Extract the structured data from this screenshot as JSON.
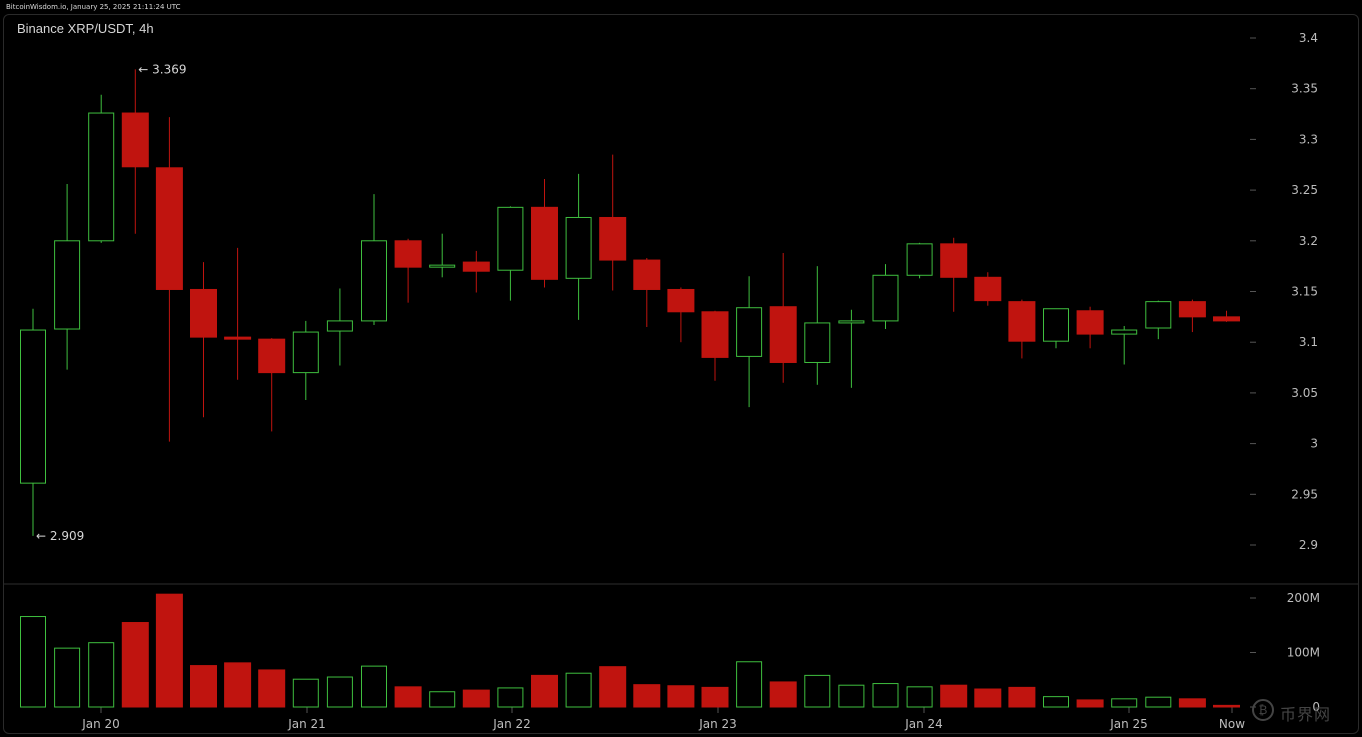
{
  "header": {
    "source_line": "BitcoinWisdom.io, January 25, 2025 21:11:24 UTC"
  },
  "chart_data": {
    "type": "candlestick",
    "title": "Binance XRP/USDT, 4h",
    "interval": "4h",
    "price_axis": {
      "ticks": [
        "3.4",
        "3.35",
        "3.3",
        "3.25",
        "3.2",
        "3.15",
        "3.1",
        "3.05",
        "3",
        "2.95",
        "2.9"
      ],
      "range": [
        2.87,
        3.42
      ]
    },
    "volume_axis": {
      "ticks": [
        "200M",
        "100M",
        "0"
      ],
      "range": [
        0,
        215
      ]
    },
    "x_ticks": [
      "Jan 20",
      "Jan 21",
      "Jan 22",
      "Jan 23",
      "Jan 24",
      "Jan 25",
      "Now"
    ],
    "annotations": {
      "high": "← 3.369",
      "low": "← 2.909"
    },
    "colors": {
      "up": "#3fbf3f",
      "down": "#c0140f",
      "grid": "#2b2b2b"
    },
    "candles": [
      {
        "o": 2.961,
        "h": 3.133,
        "l": 2.909,
        "c": 3.112,
        "v": 166
      },
      {
        "o": 3.113,
        "h": 3.256,
        "l": 3.073,
        "c": 3.2,
        "v": 108
      },
      {
        "o": 3.2,
        "h": 3.344,
        "l": 3.198,
        "c": 3.326,
        "v": 118
      },
      {
        "o": 3.326,
        "h": 3.369,
        "l": 3.207,
        "c": 3.273,
        "v": 155
      },
      {
        "o": 3.272,
        "h": 3.322,
        "l": 3.002,
        "c": 3.152,
        "v": 207
      },
      {
        "o": 3.152,
        "h": 3.179,
        "l": 3.026,
        "c": 3.105,
        "v": 76
      },
      {
        "o": 3.105,
        "h": 3.193,
        "l": 3.063,
        "c": 3.103,
        "v": 81
      },
      {
        "o": 3.103,
        "h": 3.104,
        "l": 3.012,
        "c": 3.07,
        "v": 68
      },
      {
        "o": 3.07,
        "h": 3.121,
        "l": 3.043,
        "c": 3.11,
        "v": 51
      },
      {
        "o": 3.111,
        "h": 3.153,
        "l": 3.077,
        "c": 3.121,
        "v": 55
      },
      {
        "o": 3.121,
        "h": 3.246,
        "l": 3.117,
        "c": 3.2,
        "v": 75
      },
      {
        "o": 3.2,
        "h": 3.202,
        "l": 3.139,
        "c": 3.174,
        "v": 37
      },
      {
        "o": 3.174,
        "h": 3.207,
        "l": 3.164,
        "c": 3.176,
        "v": 28
      },
      {
        "o": 3.179,
        "h": 3.19,
        "l": 3.149,
        "c": 3.17,
        "v": 31
      },
      {
        "o": 3.171,
        "h": 3.234,
        "l": 3.141,
        "c": 3.233,
        "v": 35
      },
      {
        "o": 3.233,
        "h": 3.261,
        "l": 3.154,
        "c": 3.162,
        "v": 58
      },
      {
        "o": 3.163,
        "h": 3.266,
        "l": 3.122,
        "c": 3.223,
        "v": 62
      },
      {
        "o": 3.223,
        "h": 3.285,
        "l": 3.151,
        "c": 3.181,
        "v": 74
      },
      {
        "o": 3.181,
        "h": 3.183,
        "l": 3.115,
        "c": 3.152,
        "v": 41
      },
      {
        "o": 3.152,
        "h": 3.154,
        "l": 3.1,
        "c": 3.13,
        "v": 39
      },
      {
        "o": 3.13,
        "h": 3.131,
        "l": 3.062,
        "c": 3.085,
        "v": 36
      },
      {
        "o": 3.086,
        "h": 3.165,
        "l": 3.036,
        "c": 3.134,
        "v": 83
      },
      {
        "o": 3.135,
        "h": 3.188,
        "l": 3.06,
        "c": 3.08,
        "v": 46
      },
      {
        "o": 3.08,
        "h": 3.175,
        "l": 3.058,
        "c": 3.119,
        "v": 58
      },
      {
        "o": 3.119,
        "h": 3.132,
        "l": 3.055,
        "c": 3.121,
        "v": 40
      },
      {
        "o": 3.121,
        "h": 3.177,
        "l": 3.113,
        "c": 3.166,
        "v": 43
      },
      {
        "o": 3.166,
        "h": 3.198,
        "l": 3.163,
        "c": 3.197,
        "v": 37
      },
      {
        "o": 3.197,
        "h": 3.203,
        "l": 3.13,
        "c": 3.164,
        "v": 40
      },
      {
        "o": 3.164,
        "h": 3.169,
        "l": 3.136,
        "c": 3.141,
        "v": 33
      },
      {
        "o": 3.14,
        "h": 3.142,
        "l": 3.084,
        "c": 3.101,
        "v": 36
      },
      {
        "o": 3.101,
        "h": 3.133,
        "l": 3.094,
        "c": 3.133,
        "v": 19
      },
      {
        "o": 3.131,
        "h": 3.135,
        "l": 3.094,
        "c": 3.108,
        "v": 13
      },
      {
        "o": 3.108,
        "h": 3.116,
        "l": 3.078,
        "c": 3.112,
        "v": 15
      },
      {
        "o": 3.114,
        "h": 3.141,
        "l": 3.103,
        "c": 3.14,
        "v": 18
      },
      {
        "o": 3.14,
        "h": 3.142,
        "l": 3.11,
        "c": 3.125,
        "v": 15
      },
      {
        "o": 3.125,
        "h": 3.131,
        "l": 3.12,
        "c": 3.121,
        "v": 3
      }
    ]
  }
}
